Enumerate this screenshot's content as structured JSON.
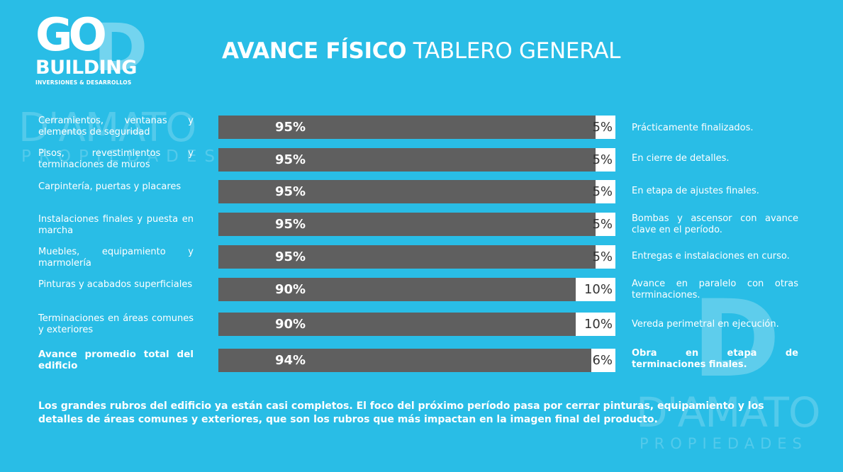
{
  "logo": {
    "go": "GO",
    "building": "BUILDING",
    "sub": "INVERSIONES & DESARROLLOS"
  },
  "watermark": {
    "name": "D'AMATO",
    "sub": "PROPIEDADES",
    "letter": "D"
  },
  "title": {
    "bold": "AVANCE FÍSICO",
    "light": "TABLERO GENERAL"
  },
  "chart_data": {
    "type": "bar",
    "orientation": "horizontal",
    "stacked": true,
    "xlim": [
      0,
      100
    ],
    "categories": [
      "Cerramientos, ventanas y elementos de seguridad",
      "Pisos, revestimientos y terminaciones de muros",
      "Carpintería, puertas y placares",
      "Instalaciones finales y puesta en marcha",
      "Muebles, equipamiento y marmolería",
      "Pinturas y acabados superficiales",
      "Terminaciones en áreas comunes y exteriores",
      "Avance promedio total del edificio"
    ],
    "series": [
      {
        "values": [
          95,
          95,
          95,
          95,
          95,
          90,
          90,
          94
        ],
        "color": "#5f5f5f"
      },
      {
        "values": [
          5,
          5,
          5,
          5,
          5,
          10,
          10,
          6
        ],
        "color": "#ffffff"
      }
    ],
    "done_labels": [
      "95%",
      "95%",
      "95%",
      "95%",
      "95%",
      "90%",
      "90%",
      "94%"
    ],
    "remaining_labels": [
      "5%",
      "5%",
      "5%",
      "5%",
      "5%",
      "10%",
      "10%",
      "6%"
    ],
    "comments": [
      "Prácticamente finalizados.",
      "En cierre de detalles.",
      "En etapa de ajustes finales.",
      "Bombas y ascensor con avance clave en el período.",
      "Entregas e instalaciones en curso.",
      "Avance en paralelo con otras terminaciones.",
      "Vereda perimetral en ejecución.",
      "Obra en etapa de terminaciones finales."
    ]
  },
  "footer": "Los grandes rubros del edificio ya están casi completos. El foco del próximo período pasa por cerrar pinturas, equipamiento y los detalles de áreas comunes y exteriores, que son los rubros que más impactan en la imagen final del producto."
}
